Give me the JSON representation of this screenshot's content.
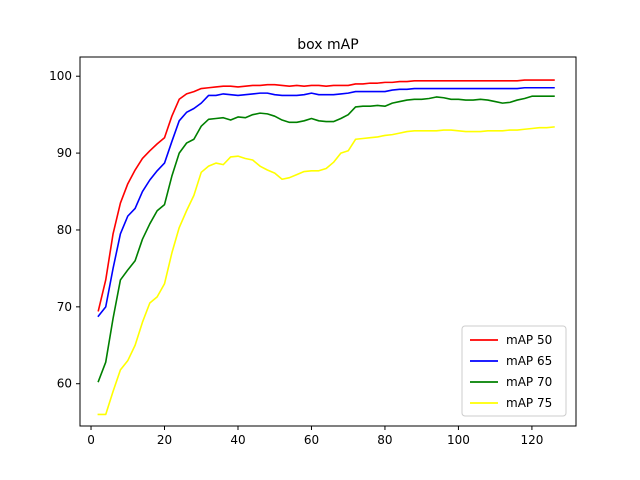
{
  "chart_data": {
    "type": "line",
    "title": "box mAP",
    "xlabel": "",
    "ylabel": "",
    "xlim": [
      -3,
      132
    ],
    "ylim": [
      54.5,
      102.5
    ],
    "xticks": [
      0,
      20,
      40,
      60,
      80,
      100,
      120
    ],
    "yticks": [
      60,
      70,
      80,
      90,
      100
    ],
    "grid": false,
    "legend_position": "lower-right",
    "series": [
      {
        "name": "mAP 50",
        "color": "#ff0000",
        "x": [
          2,
          4,
          6,
          8,
          10,
          12,
          14,
          16,
          18,
          20,
          22,
          24,
          26,
          28,
          30,
          32,
          34,
          36,
          38,
          40,
          42,
          44,
          46,
          48,
          50,
          52,
          54,
          56,
          58,
          60,
          62,
          64,
          66,
          68,
          70,
          72,
          74,
          76,
          78,
          80,
          82,
          84,
          86,
          88,
          90,
          92,
          94,
          96,
          98,
          100,
          102,
          104,
          106,
          108,
          110,
          112,
          114,
          116,
          118,
          120,
          122,
          124,
          126
        ],
        "y": [
          69.5,
          73.5,
          79.5,
          83.5,
          86,
          87.8,
          89.3,
          90.3,
          91.2,
          92,
          94.8,
          97,
          97.7,
          98,
          98.4,
          98.5,
          98.6,
          98.7,
          98.7,
          98.6,
          98.7,
          98.8,
          98.8,
          98.9,
          98.9,
          98.8,
          98.7,
          98.8,
          98.7,
          98.8,
          98.8,
          98.7,
          98.8,
          98.8,
          98.8,
          99,
          99,
          99.1,
          99.1,
          99.2,
          99.2,
          99.3,
          99.3,
          99.4,
          99.4,
          99.4,
          99.4,
          99.4,
          99.4,
          99.4,
          99.4,
          99.4,
          99.4,
          99.4,
          99.4,
          99.4,
          99.4,
          99.4,
          99.5,
          99.5,
          99.5,
          99.5,
          99.5
        ]
      },
      {
        "name": "mAP 65",
        "color": "#0000ff",
        "x": [
          2,
          4,
          6,
          8,
          10,
          12,
          14,
          16,
          18,
          20,
          22,
          24,
          26,
          28,
          30,
          32,
          34,
          36,
          38,
          40,
          42,
          44,
          46,
          48,
          50,
          52,
          54,
          56,
          58,
          60,
          62,
          64,
          66,
          68,
          70,
          72,
          74,
          76,
          78,
          80,
          82,
          84,
          86,
          88,
          90,
          92,
          94,
          96,
          98,
          100,
          102,
          104,
          106,
          108,
          110,
          112,
          114,
          116,
          118,
          120,
          122,
          124,
          126
        ],
        "y": [
          68.8,
          70,
          75,
          79.5,
          81.8,
          82.8,
          85,
          86.5,
          87.7,
          88.7,
          91.5,
          94.2,
          95.3,
          95.8,
          96.5,
          97.5,
          97.5,
          97.7,
          97.6,
          97.5,
          97.6,
          97.7,
          97.8,
          97.8,
          97.6,
          97.5,
          97.5,
          97.5,
          97.6,
          97.8,
          97.6,
          97.6,
          97.6,
          97.7,
          97.8,
          98,
          98,
          98,
          98,
          98,
          98.2,
          98.3,
          98.3,
          98.4,
          98.4,
          98.4,
          98.4,
          98.4,
          98.4,
          98.4,
          98.4,
          98.4,
          98.4,
          98.4,
          98.4,
          98.4,
          98.4,
          98.4,
          98.5,
          98.5,
          98.5,
          98.5,
          98.5
        ]
      },
      {
        "name": "mAP 70",
        "color": "#008000",
        "x": [
          2,
          4,
          6,
          8,
          10,
          12,
          14,
          16,
          18,
          20,
          22,
          24,
          26,
          28,
          30,
          32,
          34,
          36,
          38,
          40,
          42,
          44,
          46,
          48,
          50,
          52,
          54,
          56,
          58,
          60,
          62,
          64,
          66,
          68,
          70,
          72,
          74,
          76,
          78,
          80,
          82,
          84,
          86,
          88,
          90,
          92,
          94,
          96,
          98,
          100,
          102,
          104,
          106,
          108,
          110,
          112,
          114,
          116,
          118,
          120,
          122,
          124,
          126
        ],
        "y": [
          60.3,
          62.8,
          68.5,
          73.5,
          74.8,
          76,
          78.8,
          80.8,
          82.5,
          83.3,
          87,
          90,
          91.3,
          91.8,
          93.5,
          94.4,
          94.5,
          94.6,
          94.3,
          94.7,
          94.6,
          95,
          95.2,
          95.1,
          94.8,
          94.3,
          94,
          94,
          94.2,
          94.5,
          94.2,
          94.1,
          94.1,
          94.5,
          95,
          96,
          96.1,
          96.1,
          96.2,
          96.1,
          96.5,
          96.7,
          96.9,
          97,
          97,
          97.1,
          97.3,
          97.2,
          97,
          97,
          96.9,
          96.9,
          97,
          96.9,
          96.7,
          96.5,
          96.6,
          96.9,
          97.1,
          97.4,
          97.4,
          97.4,
          97.4
        ]
      },
      {
        "name": "mAP 75",
        "color": "#ffff00",
        "x": [
          2,
          4,
          6,
          8,
          10,
          12,
          14,
          16,
          18,
          20,
          22,
          24,
          26,
          28,
          30,
          32,
          34,
          36,
          38,
          40,
          42,
          44,
          46,
          48,
          50,
          52,
          54,
          56,
          58,
          60,
          62,
          64,
          66,
          68,
          70,
          72,
          74,
          76,
          78,
          80,
          82,
          84,
          86,
          88,
          90,
          92,
          94,
          96,
          98,
          100,
          102,
          104,
          106,
          108,
          110,
          112,
          114,
          116,
          118,
          120,
          122,
          124,
          126
        ],
        "y": [
          56,
          56,
          59,
          61.8,
          63,
          65,
          68,
          70.5,
          71.3,
          73,
          77,
          80.3,
          82.5,
          84.5,
          87.5,
          88.3,
          88.7,
          88.5,
          89.5,
          89.6,
          89.3,
          89.1,
          88.3,
          87.8,
          87.4,
          86.6,
          86.8,
          87.2,
          87.6,
          87.7,
          87.7,
          88,
          88.8,
          90,
          90.3,
          91.8,
          91.9,
          92,
          92.1,
          92.3,
          92.4,
          92.6,
          92.8,
          92.9,
          92.9,
          92.9,
          92.9,
          93,
          93,
          92.9,
          92.8,
          92.8,
          92.8,
          92.9,
          92.9,
          92.9,
          93,
          93,
          93.1,
          93.2,
          93.3,
          93.3,
          93.4
        ]
      }
    ]
  }
}
